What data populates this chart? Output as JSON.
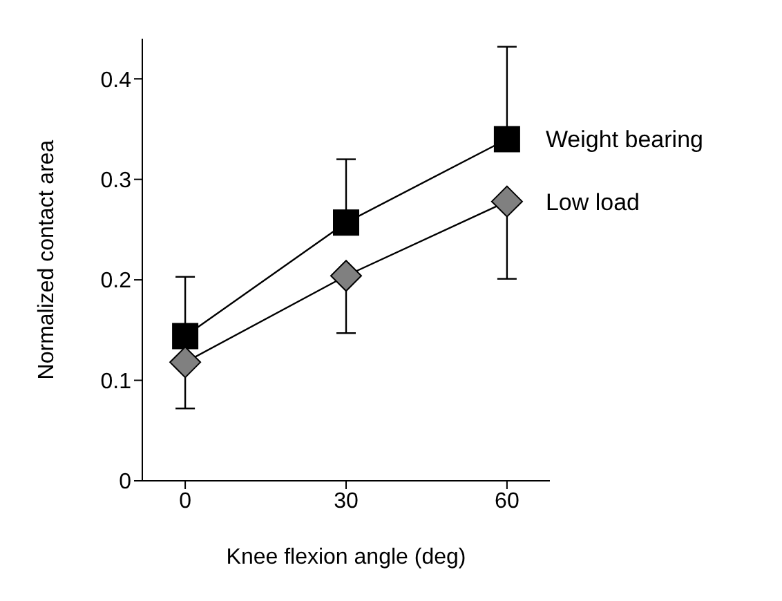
{
  "chart_data": {
    "type": "line",
    "xlabel": "Knee flexion angle (deg)",
    "ylabel": "Normalized contact area",
    "x": [
      0,
      30,
      60
    ],
    "series": [
      {
        "name": "Weight bearing",
        "color": "#000000",
        "marker": "square",
        "values": [
          0.144,
          0.257,
          0.34
        ],
        "errors": [
          [
            0.144,
            0.203
          ],
          [
            0.257,
            0.32
          ],
          [
            0.34,
            0.432
          ]
        ]
      },
      {
        "name": "Low load",
        "color": "#808080",
        "marker": "diamond",
        "values": [
          0.118,
          0.204,
          0.278
        ],
        "errors": [
          [
            0.072,
            0.118
          ],
          [
            0.147,
            0.204
          ],
          [
            0.201,
            0.278
          ]
        ]
      }
    ],
    "xlim": [
      -8,
      68
    ],
    "xticks": [
      0,
      30,
      60
    ],
    "ylim": [
      0,
      0.44
    ],
    "yticks": [
      0,
      0.1,
      0.2,
      0.3,
      0.4
    ],
    "grid": false,
    "legend": "right",
    "line_style": "solid"
  }
}
